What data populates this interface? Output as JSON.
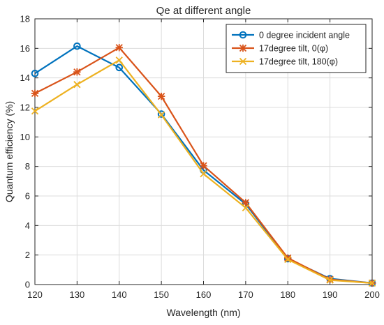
{
  "chart_data": {
    "type": "line",
    "title": "Qe at different angle",
    "xlabel": "Wavelength (nm)",
    "ylabel": "Quantum efficiency (%)",
    "xlim": [
      120,
      200
    ],
    "ylim": [
      0,
      18
    ],
    "x_ticks": [
      120,
      130,
      140,
      150,
      160,
      170,
      180,
      190,
      200
    ],
    "y_ticks": [
      0,
      2,
      4,
      6,
      8,
      10,
      12,
      14,
      16,
      18
    ],
    "grid": true,
    "legend_position": "top-right",
    "x": [
      120,
      130,
      140,
      150,
      160,
      170,
      180,
      190,
      200
    ],
    "series": [
      {
        "name": "0 degree incident angle",
        "color": "#0072BD",
        "marker": "circle",
        "values": [
          14.3,
          16.15,
          14.7,
          11.55,
          7.75,
          5.45,
          1.75,
          0.4,
          0.1
        ]
      },
      {
        "name": "17degree tilt, 0(φ)",
        "color": "#D95319",
        "marker": "asterisk",
        "values": [
          12.95,
          14.4,
          16.05,
          12.75,
          8.05,
          5.55,
          1.8,
          0.35,
          0.1
        ]
      },
      {
        "name": "17degree tilt, 180(φ)",
        "color": "#EDB120",
        "marker": "x",
        "values": [
          11.75,
          13.55,
          15.2,
          11.5,
          7.5,
          5.2,
          1.7,
          0.3,
          0.1
        ]
      }
    ]
  }
}
